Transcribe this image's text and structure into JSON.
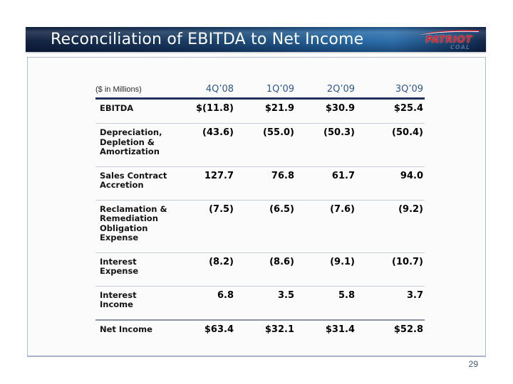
{
  "slide": {
    "title": "Reconciliation of EBITDA to Net Income",
    "page_number": "29",
    "logo": {
      "primary": "PATRIOT",
      "secondary": "COAL"
    }
  },
  "table": {
    "units_note": "($ in Millions)",
    "columns": [
      "4Q’08",
      "1Q’09",
      "2Q’09",
      "3Q’09"
    ],
    "rows": [
      {
        "label": "EBITDA",
        "values": [
          "$(11.8)",
          "$21.9",
          "$30.9",
          "$25.4"
        ],
        "total": false
      },
      {
        "label": "Depreciation,\nDepletion &\nAmortization",
        "values": [
          "(43.6)",
          "(55.0)",
          "(50.3)",
          "(50.4)"
        ],
        "total": false
      },
      {
        "label": "Sales Contract\nAccretion",
        "values": [
          "127.7",
          "76.8",
          "61.7",
          "94.0"
        ],
        "total": false
      },
      {
        "label": "Reclamation &\nRemediation\nObligation\nExpense",
        "values": [
          "(7.5)",
          "(6.5)",
          "(7.6)",
          "(9.2)"
        ],
        "total": false
      },
      {
        "label": "Interest\nExpense",
        "values": [
          "(8.2)",
          "(8.6)",
          "(9.1)",
          "(10.7)"
        ],
        "total": false
      },
      {
        "label": "Interest\nIncome",
        "values": [
          "6.8",
          "3.5",
          "5.8",
          "3.7"
        ],
        "total": false
      },
      {
        "label": "Net Income",
        "values": [
          "$63.4",
          "$32.1",
          "$31.4",
          "$52.8"
        ],
        "total": true
      }
    ]
  },
  "colors": {
    "title_bar_dark": "#0e1f3d",
    "title_bar_light": "#2a6ca9",
    "header_rule": "#20305f",
    "column_header_text": "#2d578f",
    "row_divider": "#c9cdd8",
    "total_divider": "#8b92a4",
    "page_number_text": "#44587e",
    "logo_red": "#d42b35",
    "logo_blue": "#51719f"
  }
}
